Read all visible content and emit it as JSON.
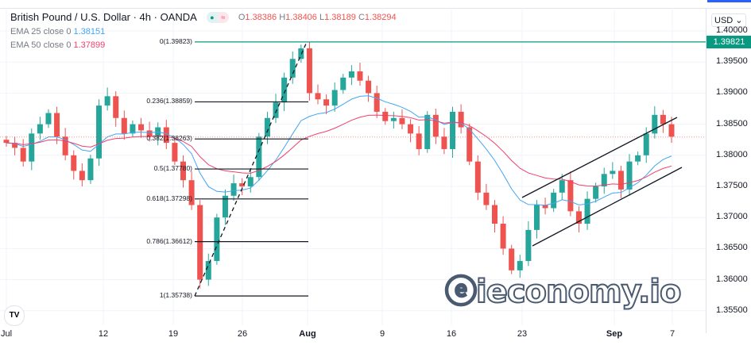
{
  "header": {
    "symbol": "British Pound / U.S. Dollar · 4h · OANDA",
    "open": "1.38386",
    "high": "1.38406",
    "low": "1.38189",
    "close": "1.38294",
    "o_label": "O",
    "h_label": "H",
    "l_label": "L",
    "c_label": "C"
  },
  "indicators": [
    {
      "label": "EMA 25 close 0",
      "value": "1.38151",
      "color": "#42a5f5"
    },
    {
      "label": "EMA 50 close 0",
      "value": "1.37899",
      "color": "#f23f6a"
    }
  ],
  "price_axis": {
    "currency": "USD",
    "ticks": [
      "1.40000",
      "1.39500",
      "1.39000",
      "1.38500",
      "1.38000",
      "1.37500",
      "1.37000",
      "1.36500",
      "1.36000",
      "1.35500"
    ],
    "last_price_tag": "1.39821"
  },
  "time_axis": [
    "Jul",
    "12",
    "19",
    "26",
    "Aug",
    "9",
    "16",
    "23",
    "Sep",
    "7"
  ],
  "fib_levels": [
    {
      "label": "0(1.39823)",
      "price": 1.39823
    },
    {
      "label": "0.236(1.38859)",
      "price": 1.38859
    },
    {
      "label": "0.382(1.38263)",
      "price": 1.38263
    },
    {
      "label": "0.5(1.37780)",
      "price": 1.3778
    },
    {
      "label": "0.618(1.37298)",
      "price": 1.37298
    },
    {
      "label": "0.786(1.36612)",
      "price": 1.36612
    },
    {
      "label": "1(1.35738)",
      "price": 1.35738
    }
  ],
  "colors": {
    "up": "#26a69a",
    "down": "#ef5350",
    "ema25": "#42a5f5",
    "ema50": "#f23f6a",
    "tag": "#089981"
  },
  "chart_data": {
    "type": "candlestick",
    "closes": [
      1.382,
      1.3812,
      1.379,
      1.3835,
      1.385,
      1.3868,
      1.383,
      1.38,
      1.3775,
      1.376,
      1.3795,
      1.388,
      1.3895,
      1.386,
      1.3835,
      1.385,
      1.384,
      1.383,
      1.3845,
      1.382,
      1.379,
      1.376,
      1.372,
      1.36,
      1.363,
      1.37,
      1.3735,
      1.3755,
      1.375,
      1.3765,
      1.383,
      1.386,
      1.3885,
      1.3925,
      1.3955,
      1.3972,
      1.39,
      1.389,
      1.388,
      1.3905,
      1.3925,
      1.3935,
      1.392,
      1.39,
      1.387,
      1.3855,
      1.386,
      1.385,
      1.3835,
      1.381,
      1.3865,
      1.383,
      1.381,
      1.387,
      1.3845,
      1.379,
      1.374,
      1.372,
      1.369,
      1.365,
      1.3615,
      1.363,
      1.368,
      1.372,
      1.3715,
      1.374,
      1.376,
      1.371,
      1.369,
      1.373,
      1.375,
      1.377,
      1.3775,
      1.3745,
      1.379,
      1.38,
      1.3835,
      1.3865,
      1.385,
      1.383
    ],
    "ylim": [
      1.3538,
      1.4035
    ]
  },
  "watermark": "ieconomy.io",
  "tv_logo": "TV"
}
